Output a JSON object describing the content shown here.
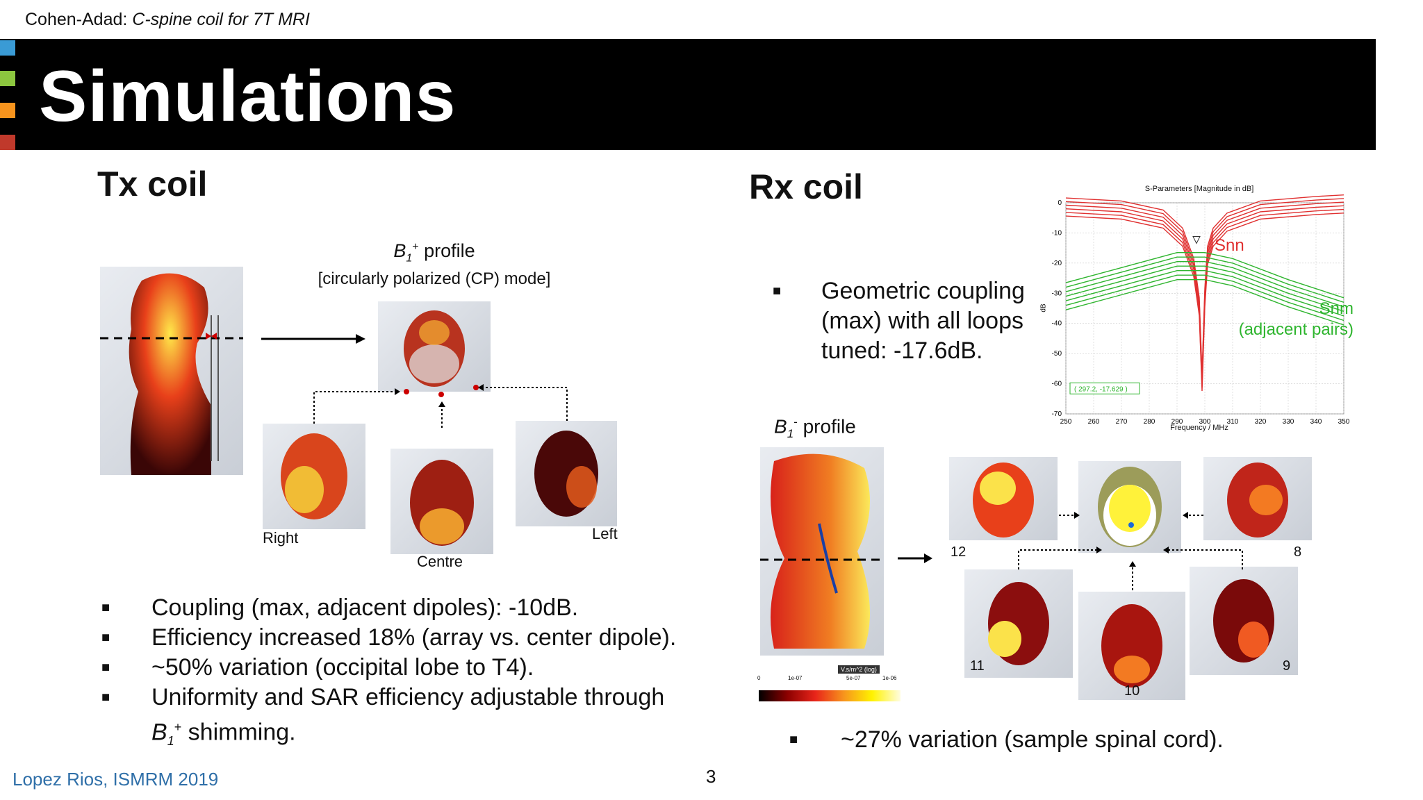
{
  "header": {
    "author": "Cohen-Adad:",
    "subtitle": "C-spine coil for 7T MRI"
  },
  "slide": {
    "title": "Simulations"
  },
  "tx": {
    "heading": "Tx coil",
    "profile_label_sym": "B",
    "profile_label_sub": "1",
    "profile_label_sup": "+",
    "profile_label_rest": " profile",
    "profile_mode": "[circularly polarized (CP) mode]",
    "labels": {
      "right": "Right",
      "centre": "Centre",
      "left": "Left"
    },
    "bullets": [
      "Coupling (max, adjacent dipoles): -10dB.",
      "Efficiency increased 18% (array vs. center dipole).",
      "~50% variation (occipital lobe to T4).",
      "Uniformity and SAR efficiency adjustable through"
    ],
    "bullet_last_sym": "B",
    "bullet_last_sub": "1",
    "bullet_last_sup": "+",
    "bullet_last_rest": " shimming."
  },
  "rx": {
    "heading": "Rx coil",
    "bullet_coupling": [
      "Geometric coupling",
      "(max) with all loops",
      "tuned: -17.6dB."
    ],
    "profile_label_sym": "B",
    "profile_label_sub": "1",
    "profile_label_sup": "-",
    "profile_label_rest": " profile",
    "loop_labels": {
      "l12": "12",
      "l8": "8",
      "l11": "11",
      "l9": "9",
      "l10": "10"
    },
    "colorbar": {
      "unit": "V.s/m^2 (log)",
      "ticks": [
        "0",
        "1e-07",
        "5e-07",
        "1e-06"
      ]
    },
    "bullet_variation": "~27% variation (sample spinal cord)."
  },
  "chart_data": {
    "type": "line",
    "title": "S-Parameters [Magnitude in dB]",
    "xlabel": "Frequency / MHz",
    "ylabel": "dB",
    "xlim": [
      250,
      350
    ],
    "ylim": [
      -70,
      0
    ],
    "xticks": [
      "250",
      "260",
      "270",
      "280",
      "290",
      "300",
      "310",
      "320",
      "330",
      "340",
      "350"
    ],
    "yticks": [
      "0",
      "-10",
      "-20",
      "-30",
      "-40",
      "-50",
      "-60",
      "-70"
    ],
    "series": [
      {
        "name": "Snn",
        "color": "#e03030",
        "x": [
          250,
          270,
          285,
          292,
          296,
          298,
          299,
          300,
          301,
          303,
          308,
          320,
          340,
          350
        ],
        "y": [
          -2,
          -3,
          -6,
          -12,
          -22,
          -35,
          -60,
          -32,
          -18,
          -12,
          -7,
          -3,
          -1.5,
          -1
        ]
      },
      {
        "name": "Snm (adjacent pairs)",
        "color": "#2fb52f",
        "x": [
          250,
          270,
          290,
          300,
          310,
          330,
          350
        ],
        "y": [
          -31,
          -26,
          -21,
          -21,
          -23,
          -30,
          -36
        ]
      }
    ],
    "marker_text": "( 297.2, -17.629 )",
    "grid": true
  },
  "footer": {
    "citation": "Lopez Rios, ISMRM 2019",
    "page": "3"
  }
}
